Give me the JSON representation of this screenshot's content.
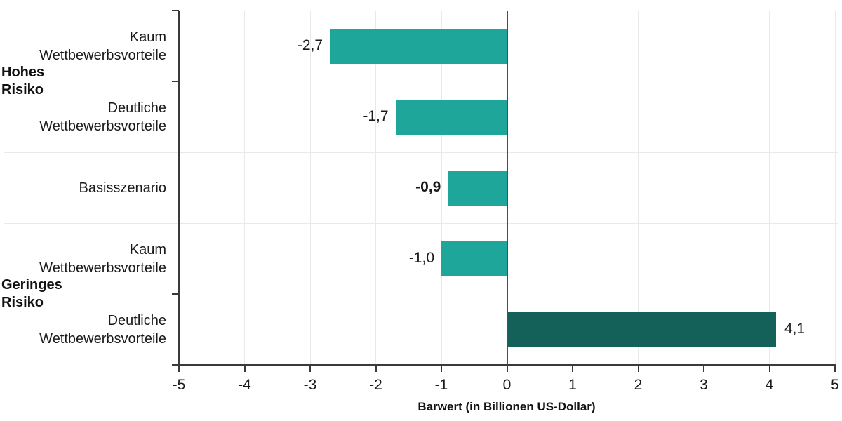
{
  "chart_data": {
    "type": "bar",
    "orientation": "horizontal",
    "title": "",
    "xlabel": "Barwert (in Billionen US-Dollar)",
    "ylabel": "",
    "xlim": [
      -5,
      5
    ],
    "xticks": [
      -5,
      -4,
      -3,
      -2,
      -1,
      0,
      1,
      2,
      3,
      4,
      5
    ],
    "xtick_labels": [
      "-5",
      "-4",
      "-3",
      "-2",
      "-1",
      "0",
      "1",
      "2",
      "3",
      "4",
      "5"
    ],
    "grid": "vertical-light",
    "legend": "none",
    "groups": [
      {
        "name": "Hohes Risiko",
        "label_lines": [
          "Hohes",
          "Risiko"
        ],
        "row_indexes": [
          0,
          1
        ]
      },
      {
        "name": "Geringes Risiko",
        "label_lines": [
          "Geringes",
          "Risiko"
        ],
        "row_indexes": [
          3,
          4
        ]
      }
    ],
    "group_starts": [
      0,
      2,
      3
    ],
    "rows": [
      {
        "category": "Kaum Wettbewerbsvorteile",
        "category_lines": [
          "Kaum",
          "Wettbewerbsvorteile"
        ],
        "value": -2.7,
        "value_label": "-2,7",
        "bold_value": false,
        "color": "#1FA69B"
      },
      {
        "category": "Deutliche Wettbewerbsvorteile",
        "category_lines": [
          "Deutliche",
          "Wettbewerbsvorteile"
        ],
        "value": -1.7,
        "value_label": "-1,7",
        "bold_value": false,
        "color": "#1FA69B"
      },
      {
        "category": "Basisszenario",
        "category_lines": [
          "Basisszenario"
        ],
        "value": -0.9,
        "value_label": "-0,9",
        "bold_value": true,
        "color": "#1FA69B"
      },
      {
        "category": "Kaum Wettbewerbsvorteile",
        "category_lines": [
          "Kaum",
          "Wettbewerbsvorteile"
        ],
        "value": -1.0,
        "value_label": "-1,0",
        "bold_value": false,
        "color": "#1FA69B"
      },
      {
        "category": "Deutliche Wettbewerbsvorteile",
        "category_lines": [
          "Deutliche",
          "Wettbewerbsvorteile"
        ],
        "value": 4.1,
        "value_label": "4,1",
        "bold_value": false,
        "color": "#136159"
      }
    ],
    "colors": {
      "bar_negative": "#1FA69B",
      "bar_positive": "#136159",
      "zero_line": "#4d4d4d",
      "axis": "#3a3a3a",
      "gridline": "#e9e9e9",
      "separator": "#e9e9e9",
      "text": "#1a1a1a"
    }
  }
}
